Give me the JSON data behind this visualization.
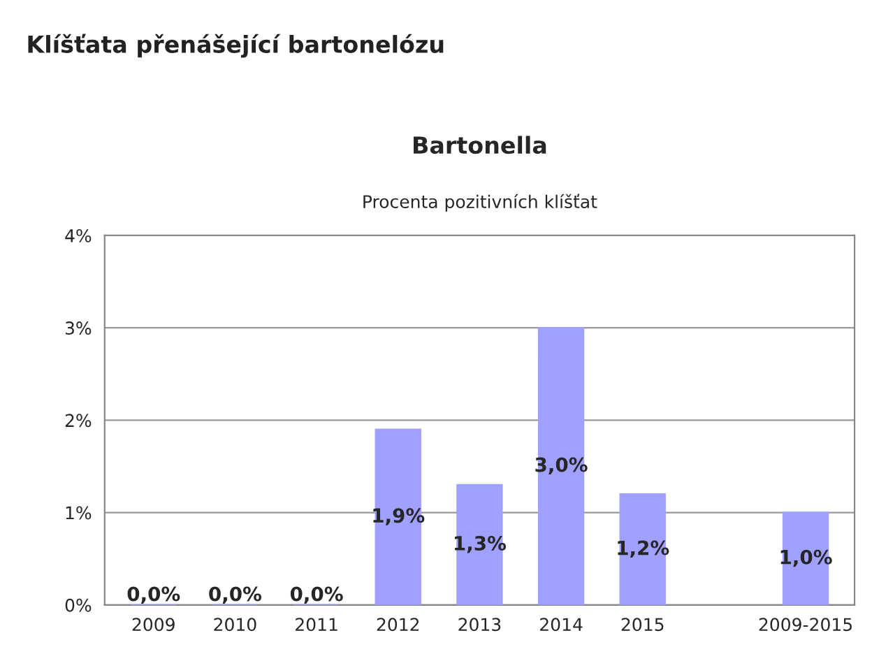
{
  "chart_data": {
    "type": "bar",
    "title": "Bartonella",
    "subtitle": "Procenta pozitivních klíšťat",
    "annotations": [
      "Klíšťata přenášející bartonelózu"
    ],
    "categories": [
      "2009",
      "2010",
      "2011",
      "2012",
      "2013",
      "2014",
      "2015",
      null,
      "2009-2015"
    ],
    "values": [
      0,
      0,
      0,
      1.9,
      1.3,
      3.0,
      1.2,
      null,
      1.0
    ],
    "value_labels": [
      "0,0%",
      "0,0%",
      "0,0%",
      "1,9%",
      "1,3%",
      "3,0%",
      "1,2%",
      null,
      "1,0%"
    ],
    "color": "#a0a0ff",
    "ylim": [
      0,
      4
    ],
    "yticks": [
      {
        "value": 0,
        "label": "0%"
      },
      {
        "value": 1,
        "label": "1%"
      },
      {
        "value": 2,
        "label": "2%"
      },
      {
        "value": 3,
        "label": "3%"
      },
      {
        "value": 4,
        "label": "4%"
      }
    ],
    "grid": "y"
  }
}
